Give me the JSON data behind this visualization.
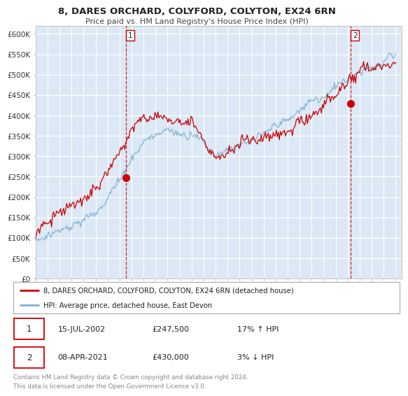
{
  "title": "8, DARES ORCHARD, COLYFORD, COLYTON, EX24 6RN",
  "subtitle": "Price paid vs. HM Land Registry's House Price Index (HPI)",
  "xlim_start": 1995.0,
  "xlim_end": 2025.5,
  "ylim_min": 0,
  "ylim_max": 620000,
  "yticks": [
    0,
    50000,
    100000,
    150000,
    200000,
    250000,
    300000,
    350000,
    400000,
    450000,
    500000,
    550000,
    600000
  ],
  "ytick_labels": [
    "£0",
    "£50K",
    "£100K",
    "£150K",
    "£200K",
    "£250K",
    "£300K",
    "£350K",
    "£400K",
    "£450K",
    "£500K",
    "£550K",
    "£600K"
  ],
  "xticks": [
    1995,
    1996,
    1997,
    1998,
    1999,
    2000,
    2001,
    2002,
    2003,
    2004,
    2005,
    2006,
    2007,
    2008,
    2009,
    2010,
    2011,
    2012,
    2013,
    2014,
    2015,
    2016,
    2017,
    2018,
    2019,
    2020,
    2021,
    2022,
    2023,
    2024,
    2025
  ],
  "sale1_x": 2002.54,
  "sale1_y": 247500,
  "sale1_label": "1",
  "sale1_date": "15-JUL-2002",
  "sale1_price": "£247,500",
  "sale1_hpi": "17% ↑ HPI",
  "sale2_x": 2021.27,
  "sale2_y": 430000,
  "sale2_label": "2",
  "sale2_date": "08-APR-2021",
  "sale2_price": "£430,000",
  "sale2_hpi": "3% ↓ HPI",
  "red_line_color": "#cc0000",
  "blue_line_color": "#7bafd4",
  "plot_bg_color": "#dce8f5",
  "legend_label_red": "8, DARES ORCHARD, COLYFORD, COLYTON, EX24 6RN (detached house)",
  "legend_label_blue": "HPI: Average price, detached house, East Devon",
  "footer1": "Contains HM Land Registry data © Crown copyright and database right 2024.",
  "footer2": "This data is licensed under the Open Government Licence v3.0."
}
